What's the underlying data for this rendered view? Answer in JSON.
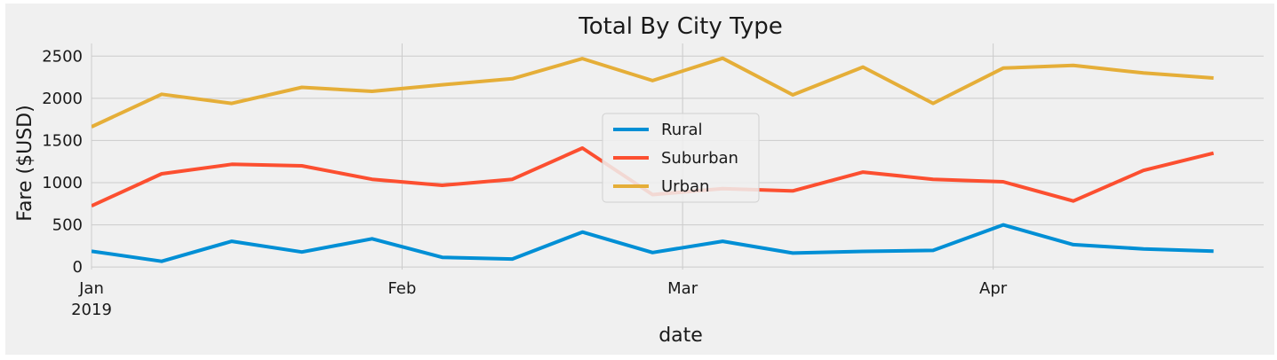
{
  "chart_data": {
    "type": "line",
    "title": "Total By City Type",
    "xlabel": "date",
    "ylabel": "Fare ($USD)",
    "x_ticks": [
      {
        "label": "Jan",
        "sublabel": "2019",
        "date": "2019-01-01"
      },
      {
        "label": "Feb",
        "sublabel": "",
        "date": "2019-02-01"
      },
      {
        "label": "Mar",
        "sublabel": "",
        "date": "2019-03-01"
      },
      {
        "label": "Apr",
        "sublabel": "",
        "date": "2019-04-01"
      }
    ],
    "y_ticks": [
      0,
      500,
      1000,
      1500,
      2000,
      2500
    ],
    "xlim": [
      "2019-01-01",
      "2019-04-28"
    ],
    "ylim": [
      -30,
      2650
    ],
    "grid": true,
    "legend_position": "center",
    "x": [
      "2019-01-01",
      "2019-01-08",
      "2019-01-15",
      "2019-01-22",
      "2019-01-29",
      "2019-02-05",
      "2019-02-12",
      "2019-02-19",
      "2019-02-26",
      "2019-03-05",
      "2019-03-12",
      "2019-03-19",
      "2019-03-26",
      "2019-04-02",
      "2019-04-09",
      "2019-04-16",
      "2019-04-23",
      "2019-04-28"
    ],
    "series": [
      {
        "name": "Rural",
        "color": "#008fd5",
        "values": [
          188,
          68,
          305,
          178,
          335,
          115,
          95,
          415,
          172,
          305,
          165,
          185,
          197,
          500,
          265,
          215,
          188,
          null
        ]
      },
      {
        "name": "Suburban",
        "color": "#fc4f30",
        "values": [
          725,
          1105,
          1218,
          1200,
          1040,
          968,
          1040,
          1410,
          858,
          928,
          902,
          1125,
          1040,
          1010,
          782,
          1145,
          1350,
          null
        ]
      },
      {
        "name": "Urban",
        "color": "#e5ae38",
        "values": [
          1662,
          2048,
          1940,
          2130,
          2082,
          2160,
          2232,
          2470,
          2210,
          2475,
          2040,
          2370,
          1940,
          2358,
          2390,
          2300,
          2240,
          null
        ]
      }
    ]
  }
}
